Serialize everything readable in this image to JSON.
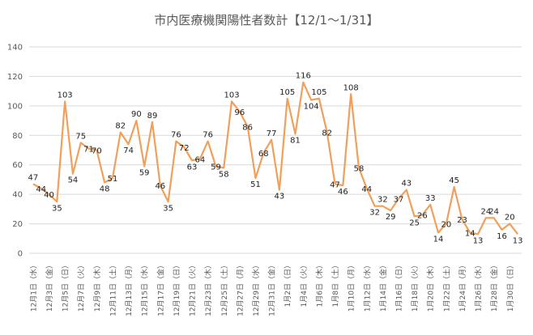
{
  "chart_data": {
    "type": "line",
    "title": "市内医療機関陽性者数計【12/1～1/31】",
    "ylim": [
      0,
      140
    ],
    "yticks": [
      "0",
      "20",
      "40",
      "60",
      "80",
      "100",
      "120",
      "140"
    ],
    "grid": true,
    "legend": "none",
    "line_color": "#f0a05a",
    "categories": [
      "12月1日（水）",
      "",
      "12月3日（金）",
      "",
      "12月5日（日）",
      "",
      "12月7日（火）",
      "",
      "12月9日（木）",
      "",
      "12月11日（土）",
      "",
      "12月13日（月）",
      "",
      "12月15日（水）",
      "",
      "12月17日（金）",
      "",
      "12月19日（日）",
      "",
      "12月21日（火）",
      "",
      "12月23日（木）",
      "",
      "12月25日（土）",
      "",
      "12月27日（月）",
      "",
      "12月29日（水）",
      "",
      "12月31日（金）",
      "",
      "1月2日（日）",
      "",
      "1月4日（火）",
      "",
      "1月6日（木）",
      "",
      "1月8日（土）",
      "",
      "1月10日（月）",
      "",
      "1月12日（水）",
      "",
      "1月14日（金）",
      "",
      "1月16日（日）",
      "",
      "1月18日（火）",
      "",
      "1月20日（木）",
      "",
      "1月22日（土）",
      "",
      "1月24日（月）",
      "",
      "1月26日（水）",
      "",
      "1月28日（金）",
      "",
      "1月30日（日）",
      ""
    ],
    "values": [
      47,
      44,
      40,
      35,
      103,
      54,
      75,
      71,
      70,
      48,
      51,
      82,
      74,
      90,
      59,
      89,
      46,
      35,
      76,
      72,
      63,
      64,
      76,
      59,
      58,
      103,
      96,
      86,
      51,
      68,
      77,
      43,
      105,
      81,
      116,
      104,
      105,
      82,
      47,
      46,
      108,
      58,
      44,
      32,
      32,
      29,
      37,
      43,
      25,
      26,
      33,
      14,
      20,
      45,
      23,
      14,
      13,
      24,
      24,
      16,
      20,
      13
    ]
  }
}
